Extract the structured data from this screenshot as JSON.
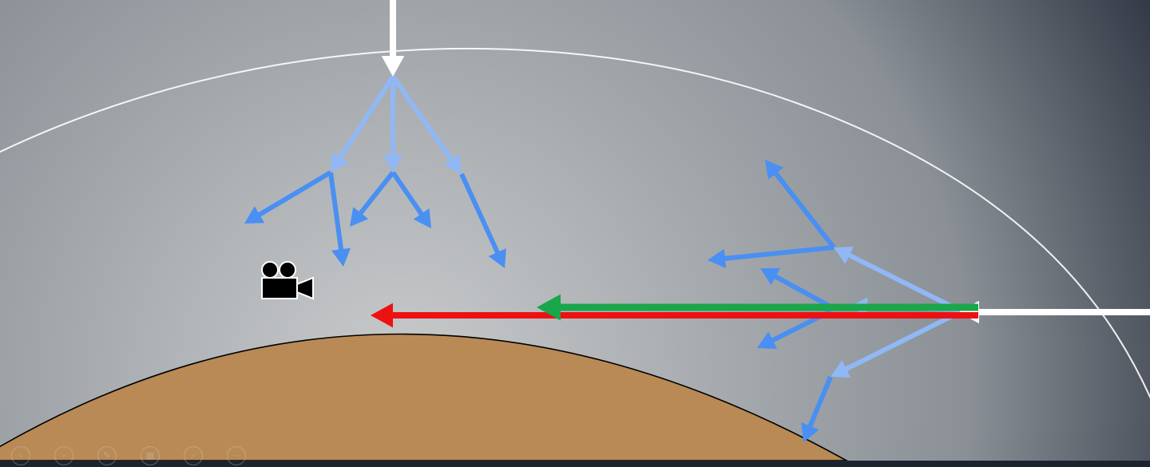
{
  "colors": {
    "atmosphere_center": "#c9cbcc",
    "atmosphere_mid": "#8a9096",
    "space_dark": "#1b2230",
    "earth": "#b98a55",
    "incoming_light": "#ffffff",
    "scatter_primary": "#8fb8f5",
    "scatter_secondary": "#4a8ff2",
    "red_beam": "#ee1111",
    "green_beam": "#1aa64a"
  },
  "icons": {
    "observer": "movie-camera-icon"
  },
  "toolbar": {
    "buttons": [
      {
        "icon": "previous-icon",
        "glyph": "‹"
      },
      {
        "icon": "next-icon",
        "glyph": "›"
      },
      {
        "icon": "pen-icon",
        "glyph": "✎"
      },
      {
        "icon": "slides-grid-icon",
        "glyph": "▦"
      },
      {
        "icon": "zoom-icon",
        "glyph": "⌕"
      },
      {
        "icon": "more-options-icon",
        "glyph": "⋯"
      }
    ]
  }
}
